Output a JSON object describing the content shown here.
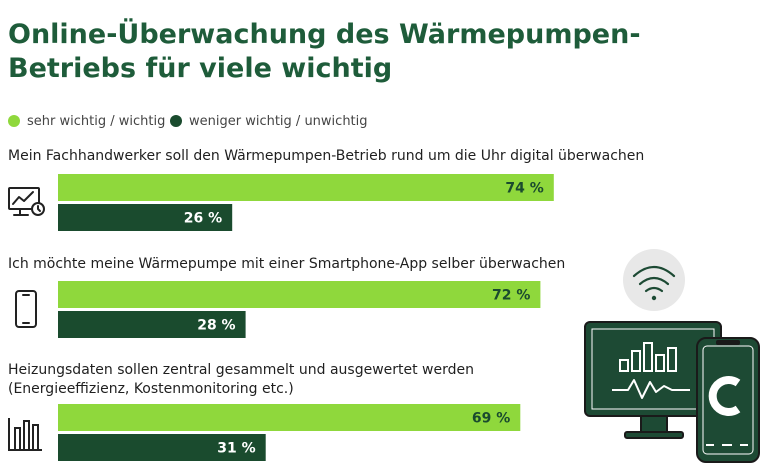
{
  "title": "Online-Überwachung des Wärmepumpen-Betriebs für viele wichtig",
  "colors": {
    "light": "#8fd83c",
    "dark": "#1a4b2e",
    "title": "#1e5c3a",
    "icon_dark": "#1d4a34"
  },
  "legend": [
    {
      "label": "sehr wichtig / wichtig",
      "color": "#8fd83c"
    },
    {
      "label": "weniger wichtig / unwichtig",
      "color": "#1a4b2e"
    }
  ],
  "icons": [
    "monitor-chart-clock-icon",
    "smartphone-icon",
    "bar-chart-icon",
    "wifi-icon",
    "monitor-phone-illustration"
  ],
  "chart_data": {
    "type": "bar",
    "orientation": "horizontal",
    "categories": [
      "Mein Fachhandwerker soll den Wärmepumpen-Betrieb rund um die Uhr digital überwachen",
      "Ich möchte meine Wärmepumpe mit einer Smartphone-App selber überwachen",
      "Heizungsdaten sollen zentral gesammelt und ausgewertet werden (Energieeffizienz, Kostenmonitoring etc.)"
    ],
    "series": [
      {
        "name": "sehr wichtig / wichtig",
        "values": [
          74,
          72,
          69
        ],
        "labels": [
          "74 %",
          "72 %",
          "69 %"
        ]
      },
      {
        "name": "weniger wichtig / unwichtig",
        "values": [
          26,
          28,
          31
        ],
        "labels": [
          "26 %",
          "28 %",
          "31 %"
        ]
      }
    ],
    "unit": "%",
    "xlim": [
      0,
      100
    ],
    "legend_position": "top-left",
    "grid": false
  }
}
